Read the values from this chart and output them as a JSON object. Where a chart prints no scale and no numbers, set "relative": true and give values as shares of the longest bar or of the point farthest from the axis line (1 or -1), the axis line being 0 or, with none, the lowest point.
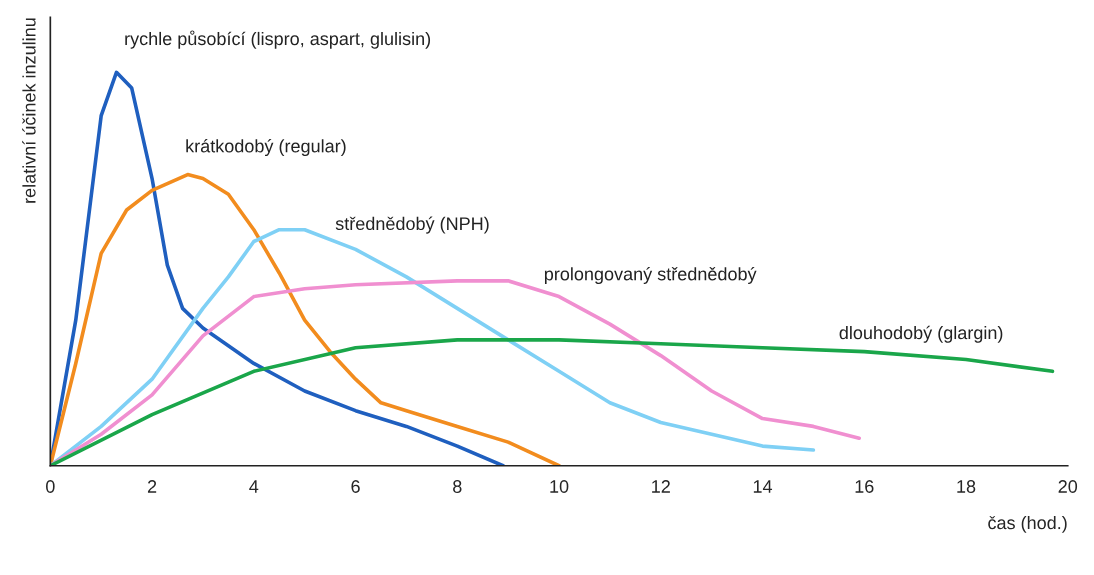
{
  "chart_data": {
    "type": "line",
    "relative": true,
    "xlabel": "čas (hod.)",
    "ylabel": "relativní účinek inzulinu",
    "xlim": [
      0,
      20
    ],
    "xticks": [
      0,
      2,
      4,
      6,
      8,
      10,
      12,
      14,
      16,
      18,
      20
    ],
    "grid": false,
    "legend": false,
    "marker": "none",
    "line_style": "solid",
    "series": [
      {
        "name": "rychle působící (lispro, aspart, glulisin)",
        "color": "#1f5fbf",
        "x": [
          0,
          0.5,
          1.0,
          1.3,
          1.6,
          2.0,
          2.3,
          2.6,
          3,
          4,
          5,
          6,
          7,
          8,
          8.9
        ],
        "values": [
          0,
          0.37,
          0.89,
          1.0,
          0.96,
          0.73,
          0.51,
          0.4,
          0.35,
          0.26,
          0.19,
          0.14,
          0.1,
          0.05,
          0
        ]
      },
      {
        "name": "krátkodobý (regular)",
        "color": "#f28c1e",
        "x": [
          0,
          0.5,
          1,
          1.5,
          2,
          2.7,
          3,
          3.5,
          4,
          4.5,
          5,
          5.5,
          6,
          6.5,
          7,
          8,
          9,
          10
        ],
        "values": [
          0,
          0.26,
          0.54,
          0.65,
          0.7,
          0.74,
          0.73,
          0.69,
          0.6,
          0.49,
          0.37,
          0.29,
          0.22,
          0.16,
          0.14,
          0.1,
          0.06,
          0
        ]
      },
      {
        "name": "střednědobý (NPH)",
        "color": "#7fd0f5",
        "x": [
          0,
          1,
          2,
          3,
          3.5,
          4,
          4.5,
          5,
          6,
          7,
          8,
          9,
          10,
          11,
          12,
          13,
          14,
          15
        ],
        "values": [
          0,
          0.1,
          0.22,
          0.4,
          0.48,
          0.57,
          0.6,
          0.6,
          0.55,
          0.48,
          0.4,
          0.32,
          0.24,
          0.16,
          0.11,
          0.08,
          0.05,
          0.04
        ]
      },
      {
        "name": "prolongovaný střednědobý",
        "color": "#f08fd0",
        "x": [
          0,
          1,
          2,
          3,
          4,
          5,
          6,
          8,
          9,
          10,
          11,
          12,
          13,
          14,
          15,
          15.9
        ],
        "values": [
          0,
          0.08,
          0.18,
          0.33,
          0.43,
          0.45,
          0.46,
          0.47,
          0.47,
          0.43,
          0.36,
          0.28,
          0.19,
          0.12,
          0.1,
          0.07
        ]
      },
      {
        "name": "dlouhodobý (glargin)",
        "color": "#1aa64a",
        "x": [
          0,
          2,
          4,
          6,
          8,
          10,
          12,
          14,
          16,
          18,
          19.7
        ],
        "values": [
          0,
          0.13,
          0.24,
          0.3,
          0.32,
          0.32,
          0.31,
          0.3,
          0.29,
          0.27,
          0.24
        ]
      }
    ]
  }
}
